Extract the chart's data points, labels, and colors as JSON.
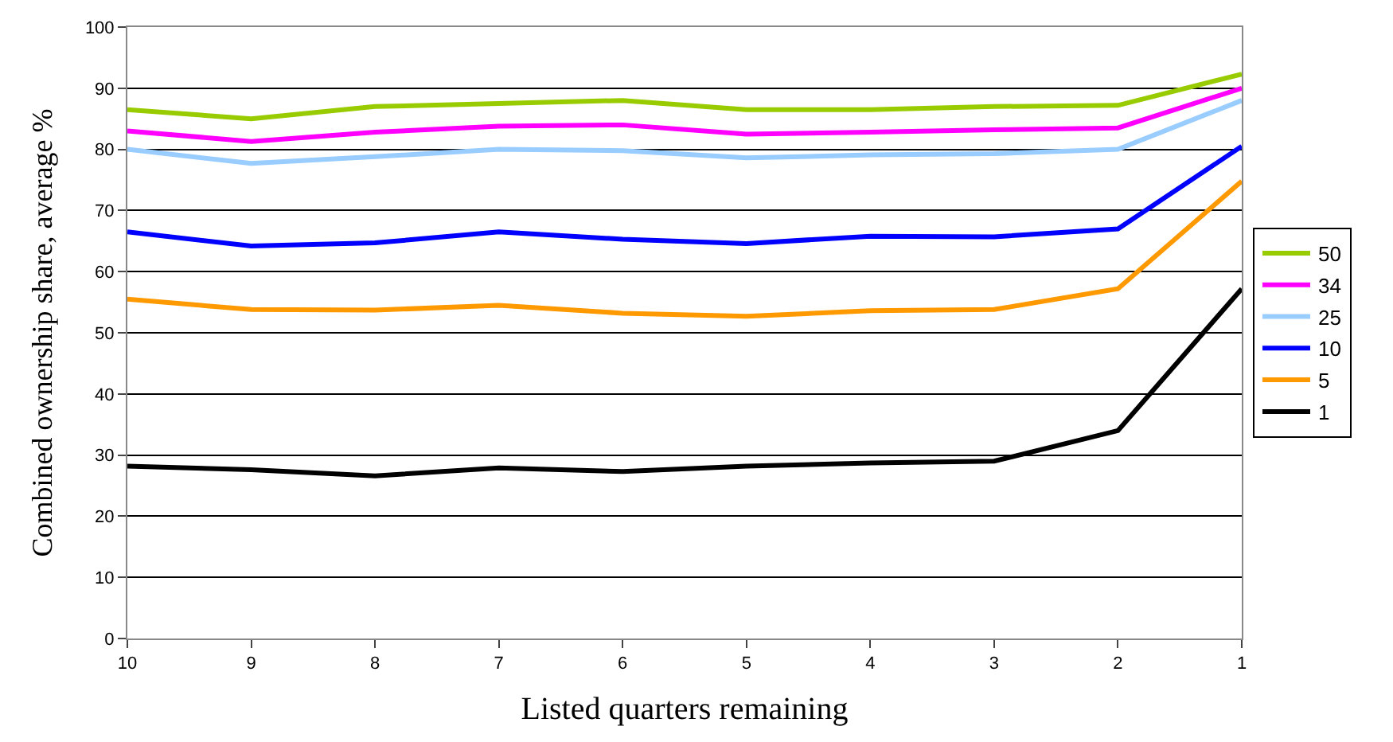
{
  "chart_data": {
    "type": "line",
    "xlabel": "Listed quarters remaining",
    "ylabel": "Combined ownership share, average %",
    "categories": [
      "10",
      "9",
      "8",
      "7",
      "6",
      "5",
      "4",
      "3",
      "2",
      "1"
    ],
    "series": [
      {
        "name": "50",
        "color": "#99cc00",
        "values": [
          86.5,
          85,
          87,
          87.5,
          88,
          86.5,
          86.5,
          87,
          87.2,
          92.3
        ]
      },
      {
        "name": "34",
        "color": "#ff00ff",
        "values": [
          83,
          81.3,
          82.8,
          83.8,
          84,
          82.5,
          82.8,
          83.2,
          83.5,
          90
        ]
      },
      {
        "name": "25",
        "color": "#99ccff",
        "values": [
          80,
          77.7,
          78.8,
          80,
          79.8,
          78.6,
          79.1,
          79.3,
          80,
          88
        ]
      },
      {
        "name": "10",
        "color": "#0000ff",
        "values": [
          66.5,
          64.2,
          64.7,
          66.5,
          65.3,
          64.6,
          65.8,
          65.7,
          67,
          80.5
        ]
      },
      {
        "name": "5",
        "color": "#ff9900",
        "values": [
          55.5,
          53.8,
          53.7,
          54.5,
          53.2,
          52.7,
          53.6,
          53.8,
          57.2,
          74.8
        ]
      },
      {
        "name": "1",
        "color": "#000000",
        "values": [
          28.2,
          27.6,
          26.6,
          27.9,
          27.3,
          28.2,
          28.7,
          29,
          34,
          57.2
        ]
      }
    ],
    "ylim": [
      0,
      100
    ],
    "yticks": [
      0,
      10,
      20,
      30,
      40,
      50,
      60,
      70,
      80,
      90,
      100
    ],
    "grid": "y",
    "legend": "right",
    "marker": "none",
    "line_style": "solid"
  }
}
